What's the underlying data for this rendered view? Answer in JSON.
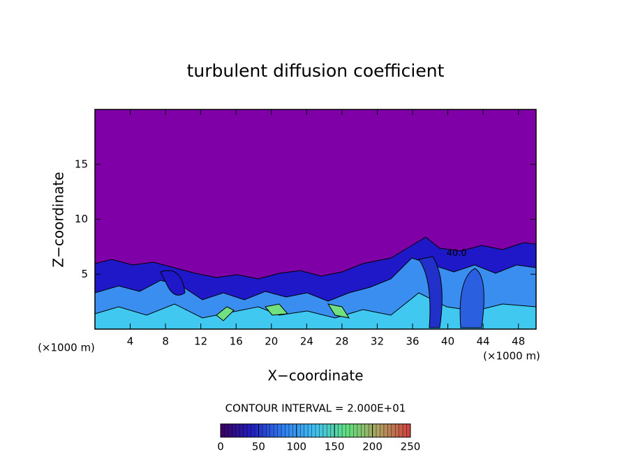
{
  "chart_data": {
    "type": "contour",
    "title": "turbulent diffusion coefficient",
    "xlabel": "X−coordinate",
    "ylabel": "Z−coordinate",
    "x_unit": "(×1000 m)",
    "y_unit": "(×1000 m)",
    "xlim": [
      0,
      50
    ],
    "xticks": [
      4,
      8,
      12,
      16,
      20,
      24,
      28,
      32,
      36,
      40,
      44,
      48
    ],
    "ylim": [
      0,
      20
    ],
    "yticks": [
      5,
      10,
      15
    ],
    "contour_interval_label": "CONTOUR INTERVAL = 2.000E+01",
    "contour_labels": [
      {
        "text": "40.0",
        "x": 41,
        "y": 6.9
      }
    ],
    "colorbar": {
      "range": [
        0,
        250
      ],
      "ticks": [
        0,
        50,
        100,
        150,
        200,
        250
      ],
      "colors": [
        "#3a0060",
        "#2020c0",
        "#3080f0",
        "#40c0f0",
        "#60e080",
        "#b0a060",
        "#d04040"
      ]
    }
  }
}
